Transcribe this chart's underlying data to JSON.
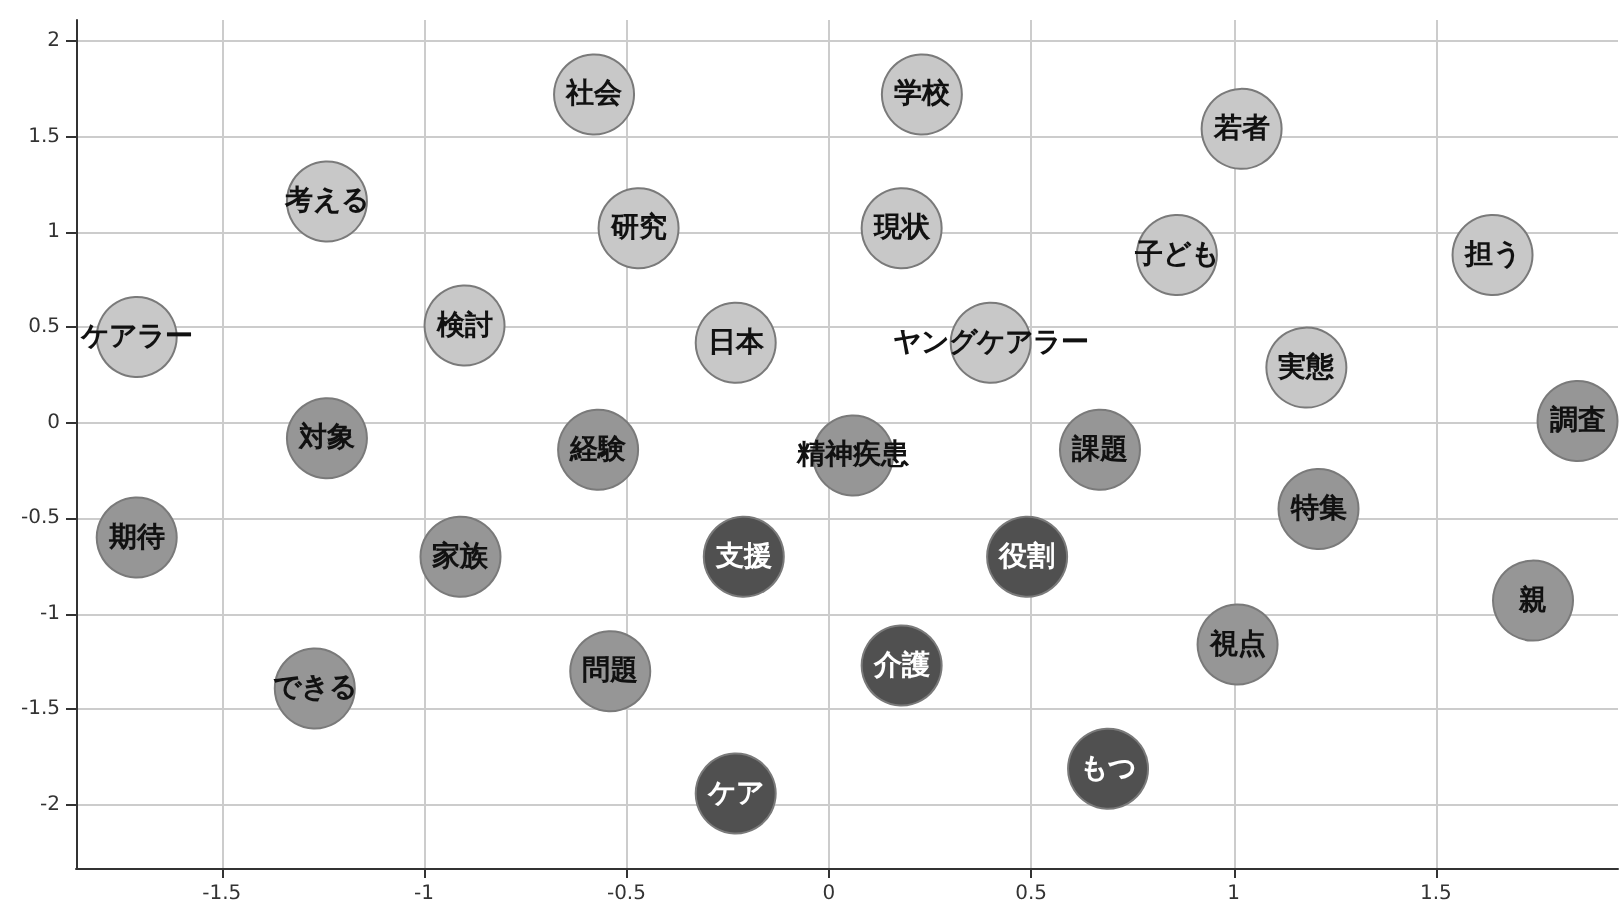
{
  "chart_data": {
    "type": "scatter",
    "marker": "circle",
    "grid": true,
    "x": [
      -0.58,
      0.23,
      1.02,
      -1.24,
      -0.47,
      0.18,
      0.86,
      1.64,
      -1.71,
      -0.9,
      -0.23,
      0.4,
      1.18,
      1.85,
      -1.24,
      -0.57,
      0.06,
      0.67,
      1.21,
      -1.71,
      -0.91,
      -0.21,
      0.49,
      1.74,
      1.01,
      -0.54,
      0.18,
      -1.27,
      0.69,
      -0.23
    ],
    "values": [
      1.72,
      1.72,
      1.54,
      1.16,
      1.02,
      1.02,
      0.88,
      0.88,
      0.45,
      0.51,
      0.42,
      0.42,
      0.29,
      0.01,
      -0.08,
      -0.14,
      -0.17,
      -0.14,
      -0.45,
      -0.6,
      -0.7,
      -0.7,
      -0.7,
      -0.93,
      -1.16,
      -1.3,
      -1.27,
      -1.39,
      -1.81,
      -1.94
    ],
    "value_labels": [
      "社会",
      "学校",
      "若者",
      "考える",
      "研究",
      "現状",
      "子ども",
      "担う",
      "ケアラー",
      "検討",
      "日本",
      "ヤングケアラー",
      "実態",
      "調査",
      "対象",
      "経験",
      "精神疾患",
      "課題",
      "特集",
      "期待",
      "家族",
      "支援",
      "役割",
      "親",
      "視点",
      "問題",
      "介護",
      "できる",
      "もつ",
      "ケア"
    ],
    "colors": [
      "#c8c8c8",
      "#c8c8c8",
      "#c8c8c8",
      "#c8c8c8",
      "#c8c8c8",
      "#c8c8c8",
      "#c8c8c8",
      "#c8c8c8",
      "#c8c8c8",
      "#c8c8c8",
      "#c8c8c8",
      "#c8c8c8",
      "#c8c8c8",
      "#969696",
      "#969696",
      "#969696",
      "#969696",
      "#969696",
      "#969696",
      "#969696",
      "#969696",
      "#505050",
      "#505050",
      "#969696",
      "#969696",
      "#969696",
      "#505050",
      "#969696",
      "#505050",
      "#505050"
    ],
    "xlim": [
      -1.86,
      1.95
    ],
    "xticks": [
      -1.5,
      -1,
      -0.5,
      0,
      0.5,
      1,
      1.5
    ],
    "ylim": [
      -2.33,
      2.11
    ],
    "yticks": [
      -2,
      -1.5,
      -1,
      -0.5,
      0,
      0.5,
      1,
      1.5,
      2
    ]
  }
}
